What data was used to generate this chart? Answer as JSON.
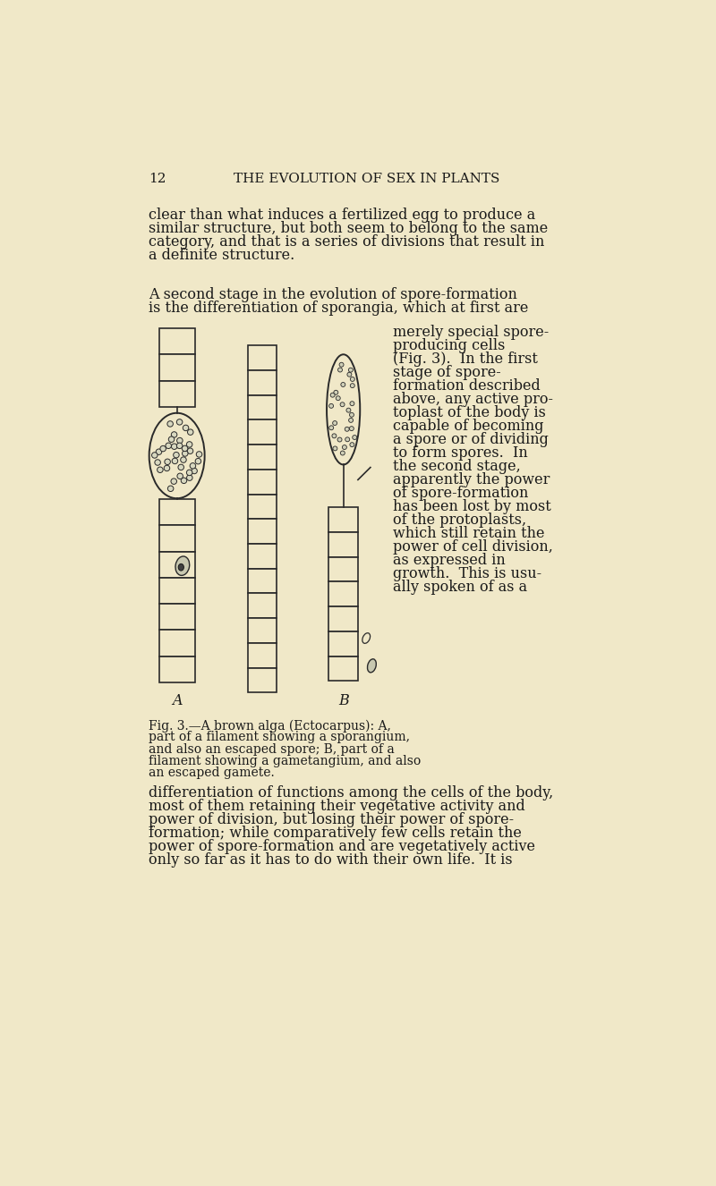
{
  "bg_color": "#f0e8c8",
  "text_color": "#1a1a1a",
  "page_number": "12",
  "header": "THE EVOLUTION OF SEX IN PLANTS",
  "para1": "clear than what induces a fertilized egg to produce a\nsimilar structure, but both seem to belong to the same\ncategory, and that is a series of divisions that result in\na definite structure.",
  "para2_start": "A second stage in the evolution of spore-formation\nis the differentiation of sporangia, which at first are",
  "para2_right": [
    "merely special spore-",
    "producing cells",
    "(Fig. 3).  In the first",
    "stage of spore-",
    "formation described",
    "above, any active pro-",
    "toplast of the body is",
    "capable of becoming",
    "a spore or of dividing",
    "to form spores.  In",
    "the second stage,",
    "apparently the power",
    "of spore-formation",
    "has been lost by most",
    "of the protoplasts,",
    "which still retain the",
    "power of cell division,",
    "as expressed in",
    "growth.  This is usu-",
    "ally spoken of as a"
  ],
  "fig_caption": [
    "Fig. 3.—A brown alga (Ectocarpus): A,",
    "part of a filament showing a sporangium,",
    "and also an escaped spore; B, part of a",
    "filament showing a gametangium, and also",
    "an escaped gamete."
  ],
  "para3": [
    "differentiation of functions among the cells of the body,",
    "most of them retaining their vegetative activity and",
    "power of division, but losing their power of spore-",
    "formation; while comparatively few cells retain the",
    "power of spore-formation and are vegetatively active",
    "only so far as it has to do with their own life.  It is"
  ],
  "fig_label_A": "A",
  "fig_label_B": "B"
}
